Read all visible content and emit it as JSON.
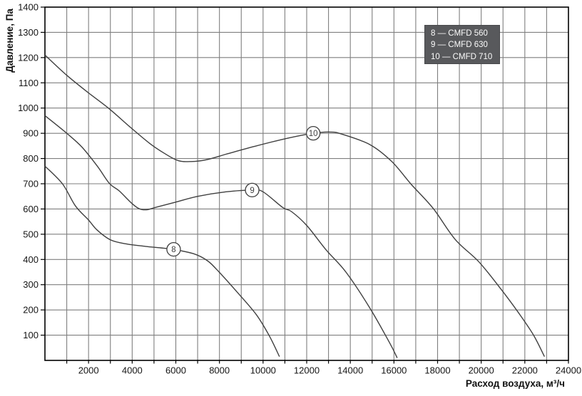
{
  "chart_data": {
    "type": "line",
    "title": "",
    "xlabel": "Расход воздуха, м³/ч",
    "ylabel": "Давление, Па",
    "xlim": [
      0,
      24000
    ],
    "ylim": [
      0,
      1400
    ],
    "x_tick_step": 2000,
    "y_tick_step": 100,
    "x_grid_step": 1000,
    "y_grid_step": 100,
    "grid": true,
    "legend_position": "top-right",
    "x_ticks": [
      2000,
      4000,
      6000,
      8000,
      10000,
      12000,
      14000,
      16000,
      18000,
      20000,
      22000,
      24000
    ],
    "y_ticks": [
      100,
      200,
      300,
      400,
      500,
      600,
      700,
      800,
      900,
      1000,
      1100,
      1200,
      1300,
      1400
    ],
    "series": [
      {
        "name": "CMFD 560",
        "marker": "8",
        "legend_label": "8 — CMFD 560",
        "marker_at": [
          5900,
          440
        ],
        "points": [
          [
            0,
            770
          ],
          [
            800,
            700
          ],
          [
            1400,
            612
          ],
          [
            2000,
            556
          ],
          [
            2400,
            516
          ],
          [
            3000,
            478
          ],
          [
            3700,
            462
          ],
          [
            4600,
            452
          ],
          [
            5300,
            446
          ],
          [
            5900,
            440
          ],
          [
            6800,
            423
          ],
          [
            7400,
            398
          ],
          [
            7900,
            358
          ],
          [
            8900,
            262
          ],
          [
            9700,
            180
          ],
          [
            10300,
            95
          ],
          [
            10750,
            15
          ]
        ]
      },
      {
        "name": "CMFD 630",
        "marker": "9",
        "legend_label": "9 — CMFD 630",
        "marker_at": [
          9500,
          675
        ],
        "points": [
          [
            0,
            970
          ],
          [
            1000,
            900
          ],
          [
            1700,
            845
          ],
          [
            2400,
            770
          ],
          [
            2950,
            702
          ],
          [
            3400,
            672
          ],
          [
            3950,
            625
          ],
          [
            4300,
            602
          ],
          [
            4650,
            597
          ],
          [
            5100,
            607
          ],
          [
            5900,
            625
          ],
          [
            7000,
            650
          ],
          [
            8300,
            668
          ],
          [
            9500,
            675
          ],
          [
            10000,
            668
          ],
          [
            10900,
            606
          ],
          [
            11300,
            590
          ],
          [
            12000,
            535
          ],
          [
            12900,
            437
          ],
          [
            13800,
            350
          ],
          [
            14900,
            207
          ],
          [
            15800,
            70
          ],
          [
            16150,
            10
          ]
        ]
      },
      {
        "name": "CMFD 710",
        "marker": "10",
        "legend_label": "10 — CMFD 710",
        "marker_at": [
          12300,
          900
        ],
        "points": [
          [
            0,
            1210
          ],
          [
            1000,
            1130
          ],
          [
            2000,
            1060
          ],
          [
            2950,
            997
          ],
          [
            3900,
            925
          ],
          [
            4800,
            860
          ],
          [
            5450,
            822
          ],
          [
            6100,
            792
          ],
          [
            6700,
            788
          ],
          [
            7400,
            795
          ],
          [
            8300,
            817
          ],
          [
            9600,
            848
          ],
          [
            11000,
            878
          ],
          [
            12300,
            900
          ],
          [
            13100,
            905
          ],
          [
            13600,
            897
          ],
          [
            14900,
            855
          ],
          [
            15900,
            788
          ],
          [
            16800,
            697
          ],
          [
            17800,
            602
          ],
          [
            18800,
            480
          ],
          [
            19900,
            390
          ],
          [
            20900,
            283
          ],
          [
            21700,
            190
          ],
          [
            22400,
            100
          ],
          [
            22900,
            15
          ]
        ]
      }
    ]
  },
  "colors": {
    "curve": "#3f3f3f",
    "grid": "#7f7f7f",
    "axis_border": "#000000",
    "tick_label": "#151515",
    "legend_bg": "#58595c",
    "legend_text": "#fbfbfb",
    "marker_fill": "#ffffff"
  }
}
